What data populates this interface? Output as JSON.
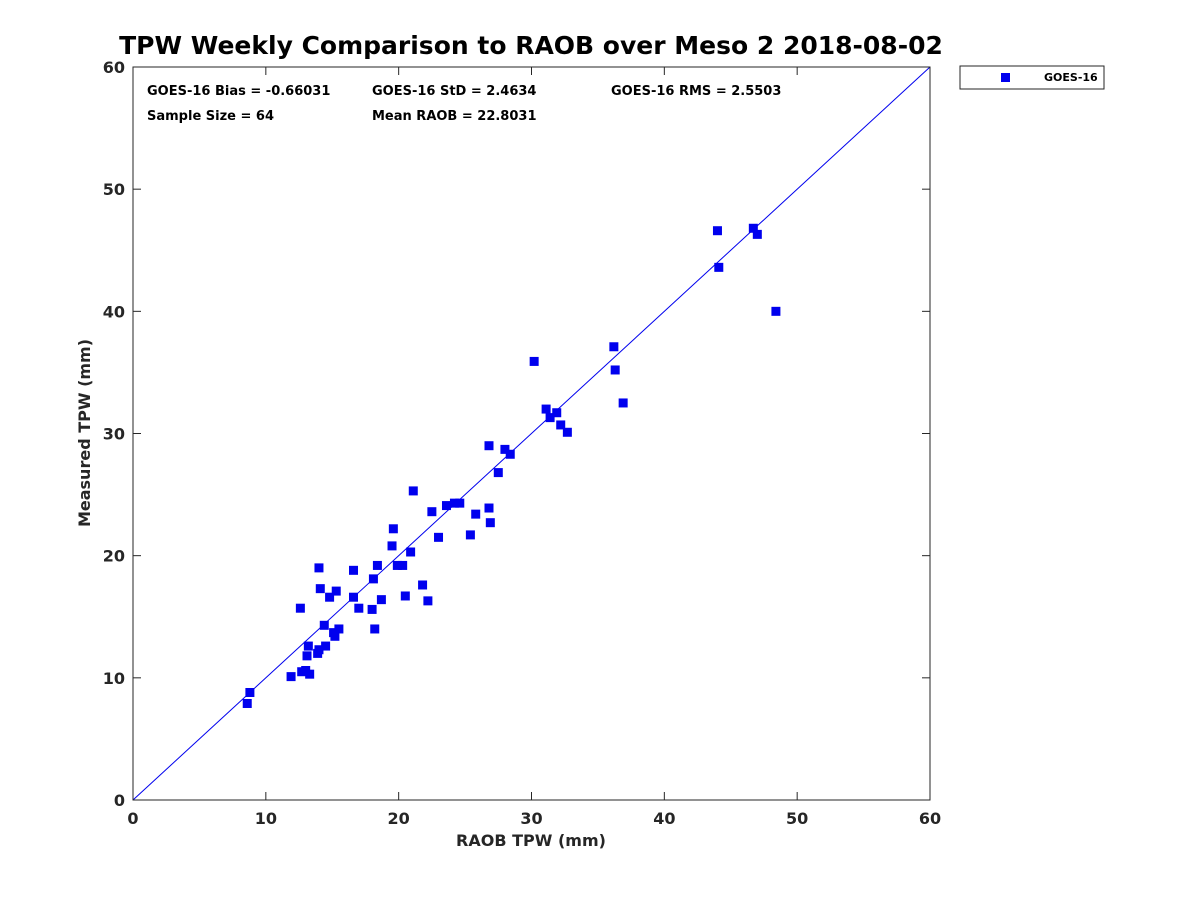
{
  "chart_data": {
    "type": "scatter",
    "title": "TPW Weekly Comparison to RAOB over Meso 2 2018-08-02",
    "xlabel": "RAOB TPW (mm)",
    "ylabel": "Measured TPW (mm)",
    "xlim": [
      0,
      60
    ],
    "ylim": [
      0,
      60
    ],
    "xticks": [
      0,
      10,
      20,
      30,
      40,
      50,
      60
    ],
    "yticks": [
      0,
      10,
      20,
      30,
      40,
      50,
      60
    ],
    "xtick_labels": [
      "0",
      "10",
      "20",
      "30",
      "40",
      "50",
      "60"
    ],
    "ytick_labels": [
      "0",
      "10",
      "20",
      "30",
      "40",
      "50",
      "60"
    ],
    "grid": false,
    "reference_line": {
      "type": "one-to-one",
      "x": [
        0,
        60
      ],
      "y": [
        0,
        60
      ],
      "color": "#0000ee"
    },
    "legend": {
      "position": "outside-top-right",
      "entries": [
        "GOES-16"
      ]
    },
    "stats": {
      "bias": "GOES-16 Bias = -0.66031",
      "std": "GOES-16 StD = 2.4634",
      "rms": "GOES-16 RMS = 2.5503",
      "sample_size": "Sample Size = 64",
      "mean_raob": "Mean RAOB = 22.8031"
    },
    "series": [
      {
        "name": "GOES-16",
        "color": "#0000ee",
        "marker": "square",
        "x": [
          8.6,
          8.8,
          11.9,
          12.6,
          12.7,
          13.0,
          13.1,
          13.2,
          13.3,
          13.9,
          14.0,
          14.0,
          14.1,
          14.4,
          14.5,
          14.8,
          15.1,
          15.2,
          15.3,
          15.5,
          16.6,
          16.6,
          17.0,
          18.0,
          18.1,
          18.2,
          18.4,
          18.7,
          19.5,
          19.6,
          19.9,
          20.3,
          20.5,
          20.9,
          21.1,
          21.8,
          22.2,
          22.5,
          23.0,
          23.6,
          24.2,
          24.6,
          25.4,
          25.8,
          26.8,
          26.8,
          26.9,
          27.5,
          28.0,
          28.4,
          30.2,
          31.1,
          31.4,
          31.9,
          32.2,
          32.7,
          36.2,
          36.3,
          36.9,
          44.0,
          44.1,
          46.7,
          47.0,
          48.4
        ],
        "y": [
          7.9,
          8.8,
          10.1,
          15.7,
          10.5,
          10.6,
          11.8,
          12.6,
          10.3,
          12.0,
          12.3,
          19.0,
          17.3,
          14.3,
          12.6,
          16.6,
          13.7,
          13.4,
          17.1,
          14.0,
          16.6,
          18.8,
          15.7,
          15.6,
          18.1,
          14.0,
          19.2,
          16.4,
          20.8,
          22.2,
          19.2,
          19.2,
          16.7,
          20.3,
          25.3,
          17.6,
          16.3,
          23.6,
          21.5,
          24.1,
          24.3,
          24.3,
          21.7,
          23.4,
          29.0,
          23.9,
          22.7,
          26.8,
          28.7,
          28.3,
          35.9,
          32.0,
          31.3,
          31.7,
          30.7,
          30.1,
          37.1,
          35.2,
          32.5,
          46.6,
          43.6,
          46.8,
          46.3,
          40.0
        ]
      }
    ]
  }
}
